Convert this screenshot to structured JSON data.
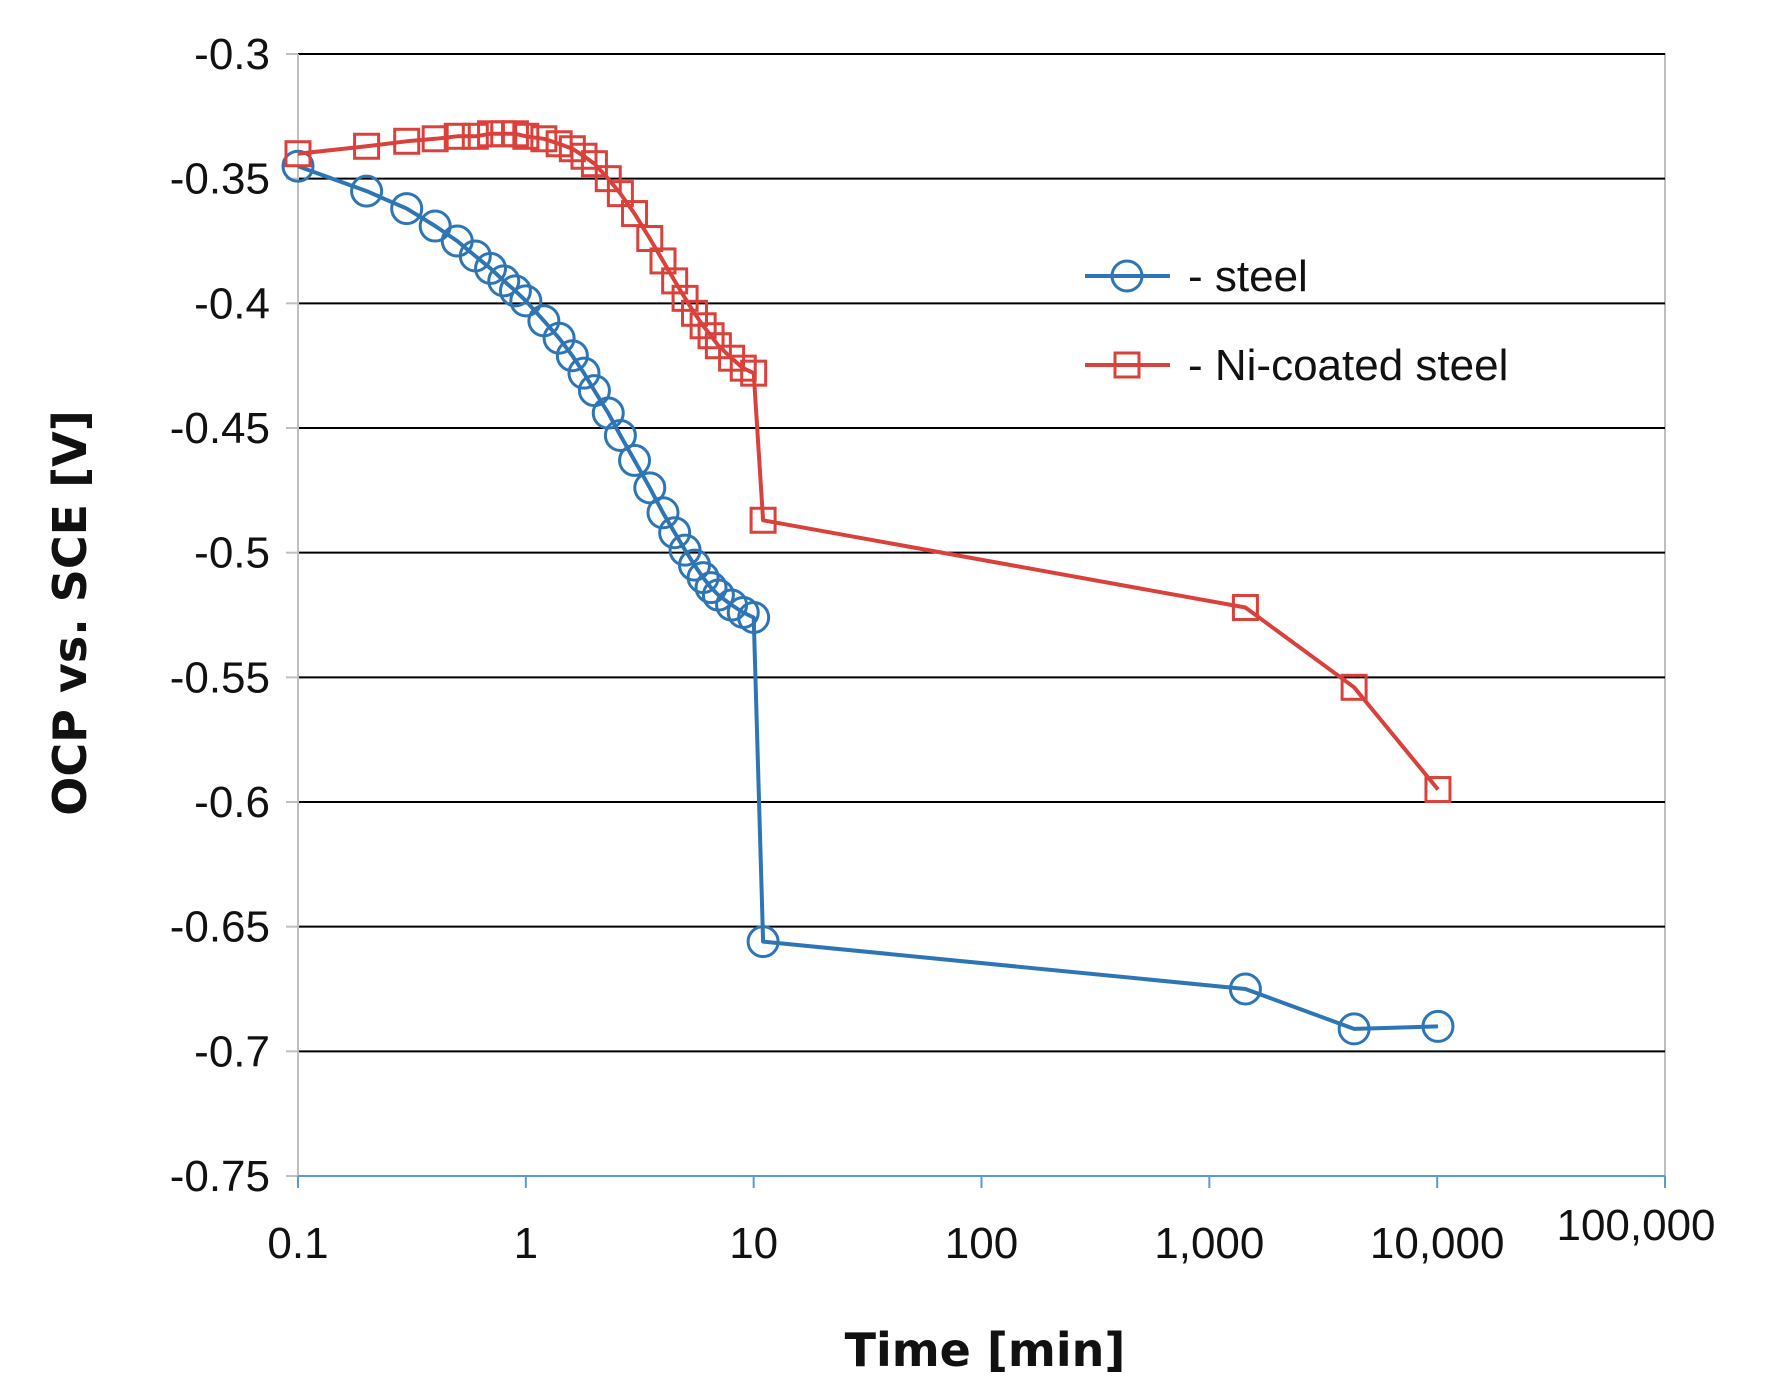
{
  "chart_data": {
    "type": "line",
    "xscale": "log",
    "title": "",
    "xlabel": "Time [min]",
    "ylabel": "OCP vs. SCE  [V]",
    "xlim": [
      0.1,
      100000
    ],
    "ylim": [
      -0.75,
      -0.3
    ],
    "x_ticks": [
      0.1,
      1,
      10,
      100,
      1000,
      10000,
      100000
    ],
    "x_tick_labels": [
      "0.1",
      "1",
      "10",
      "100",
      "1,000",
      "10,000",
      "100,000"
    ],
    "y_ticks": [
      -0.3,
      -0.35,
      -0.4,
      -0.45,
      -0.5,
      -0.55,
      -0.6,
      -0.65,
      -0.7,
      -0.75
    ],
    "y_tick_labels": [
      "-0.3",
      "-0.35",
      "-0.4",
      "-0.45",
      "-0.5",
      "-0.55",
      "-0.6",
      "-0.65",
      "-0.7",
      "-0.75"
    ],
    "grid": "horizontal",
    "legend_position": "upper-right",
    "series": [
      {
        "name": "- steel",
        "color": "#2e75b6",
        "marker": "circle",
        "points": [
          [
            0.1,
            -0.345
          ],
          [
            0.2,
            -0.355
          ],
          [
            0.3,
            -0.362
          ],
          [
            0.4,
            -0.369
          ],
          [
            0.5,
            -0.375
          ],
          [
            0.6,
            -0.381
          ],
          [
            0.7,
            -0.386
          ],
          [
            0.8,
            -0.391
          ],
          [
            0.9,
            -0.395
          ],
          [
            1.0,
            -0.399
          ],
          [
            1.2,
            -0.407
          ],
          [
            1.4,
            -0.414
          ],
          [
            1.6,
            -0.421
          ],
          [
            1.8,
            -0.428
          ],
          [
            2.0,
            -0.435
          ],
          [
            2.3,
            -0.444
          ],
          [
            2.6,
            -0.453
          ],
          [
            3.0,
            -0.463
          ],
          [
            3.5,
            -0.474
          ],
          [
            4.0,
            -0.484
          ],
          [
            4.5,
            -0.492
          ],
          [
            5.0,
            -0.499
          ],
          [
            5.5,
            -0.505
          ],
          [
            6.0,
            -0.51
          ],
          [
            6.5,
            -0.514
          ],
          [
            7.0,
            -0.517
          ],
          [
            8.0,
            -0.521
          ],
          [
            9.0,
            -0.524
          ],
          [
            10.0,
            -0.526
          ],
          [
            11.0,
            -0.656
          ],
          [
            1440,
            -0.675
          ],
          [
            4320,
            -0.691
          ],
          [
            10080,
            -0.69
          ]
        ]
      },
      {
        "name": "- Ni-coated steel",
        "color": "#d9413a",
        "marker": "square",
        "points": [
          [
            0.1,
            -0.34
          ],
          [
            0.2,
            -0.337
          ],
          [
            0.3,
            -0.335
          ],
          [
            0.4,
            -0.334
          ],
          [
            0.5,
            -0.333
          ],
          [
            0.6,
            -0.333
          ],
          [
            0.7,
            -0.332
          ],
          [
            0.8,
            -0.332
          ],
          [
            0.9,
            -0.332
          ],
          [
            1.0,
            -0.333
          ],
          [
            1.2,
            -0.334
          ],
          [
            1.4,
            -0.336
          ],
          [
            1.6,
            -0.338
          ],
          [
            1.8,
            -0.341
          ],
          [
            2.0,
            -0.344
          ],
          [
            2.3,
            -0.35
          ],
          [
            2.6,
            -0.356
          ],
          [
            3.0,
            -0.364
          ],
          [
            3.5,
            -0.374
          ],
          [
            4.0,
            -0.383
          ],
          [
            4.5,
            -0.391
          ],
          [
            5.0,
            -0.398
          ],
          [
            5.5,
            -0.404
          ],
          [
            6.0,
            -0.409
          ],
          [
            6.5,
            -0.413
          ],
          [
            7.0,
            -0.417
          ],
          [
            8.0,
            -0.422
          ],
          [
            9.0,
            -0.426
          ],
          [
            10.0,
            -0.428
          ],
          [
            11.0,
            -0.487
          ],
          [
            1440,
            -0.522
          ],
          [
            4320,
            -0.554
          ],
          [
            10080,
            -0.595
          ]
        ]
      }
    ]
  }
}
